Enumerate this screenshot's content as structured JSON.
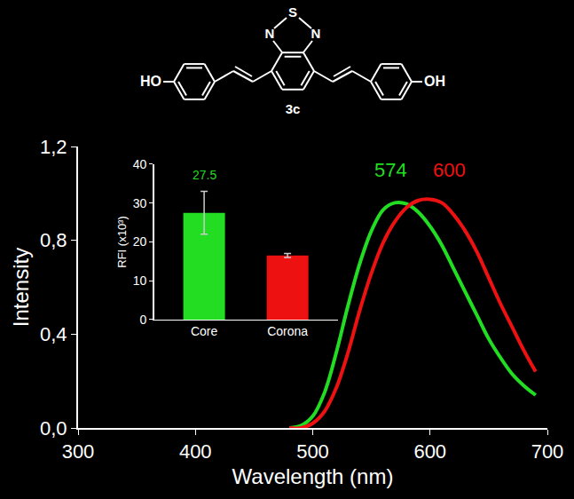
{
  "chart_data": [
    {
      "type": "line",
      "x_label": "Wavelength (nm)",
      "y_label": "Intensity",
      "x": [
        480,
        490,
        500,
        510,
        520,
        530,
        540,
        550,
        560,
        570,
        580,
        590,
        600,
        610,
        620,
        630,
        640,
        650,
        660,
        670,
        680,
        690
      ],
      "series": [
        {
          "name": "Core",
          "color": "#22dd22",
          "values": [
            0,
            0.01,
            0.05,
            0.15,
            0.32,
            0.52,
            0.7,
            0.84,
            0.93,
            0.96,
            0.955,
            0.92,
            0.86,
            0.78,
            0.68,
            0.58,
            0.48,
            0.38,
            0.3,
            0.23,
            0.18,
            0.14
          ]
        },
        {
          "name": "Corona",
          "color": "#ee1111",
          "values": [
            0,
            0,
            0.02,
            0.07,
            0.17,
            0.32,
            0.5,
            0.66,
            0.79,
            0.88,
            0.94,
            0.97,
            0.975,
            0.96,
            0.91,
            0.84,
            0.75,
            0.64,
            0.53,
            0.43,
            0.33,
            0.24
          ]
        }
      ],
      "xlim": [
        300,
        700
      ],
      "xticks": [
        300,
        400,
        500,
        600,
        700
      ],
      "ylim": [
        0,
        1.2
      ],
      "yticks": [
        {
          "value": 0,
          "label": "0,0"
        },
        {
          "value": 0.4,
          "label": "0,4"
        },
        {
          "value": 0.8,
          "label": "0,8"
        },
        {
          "value": 1.2,
          "label": "1,2"
        }
      ],
      "annotations": [
        {
          "text": "574",
          "x": 574,
          "color": "#22dd22"
        },
        {
          "text": "600",
          "x": 600,
          "color": "#ee1111"
        }
      ],
      "grid": false
    },
    {
      "type": "bar",
      "y_label": "RFI (x10³)",
      "categories": [
        "Core",
        "Corona"
      ],
      "values": [
        27.5,
        16.5
      ],
      "errors": [
        5.5,
        0.5
      ],
      "colors": [
        "#22dd22",
        "#ee1111"
      ],
      "ylim": [
        0,
        40
      ],
      "yticks": [
        0,
        10,
        20,
        30,
        40
      ],
      "annotations": [
        {
          "text": "27.5",
          "category": "Core",
          "color": "#22dd22"
        }
      ],
      "grid": false
    }
  ],
  "structure": {
    "left_group": "HO",
    "right_group": "OH",
    "n_left": "N",
    "s": "S",
    "n_right": "N",
    "compound": "3c"
  }
}
